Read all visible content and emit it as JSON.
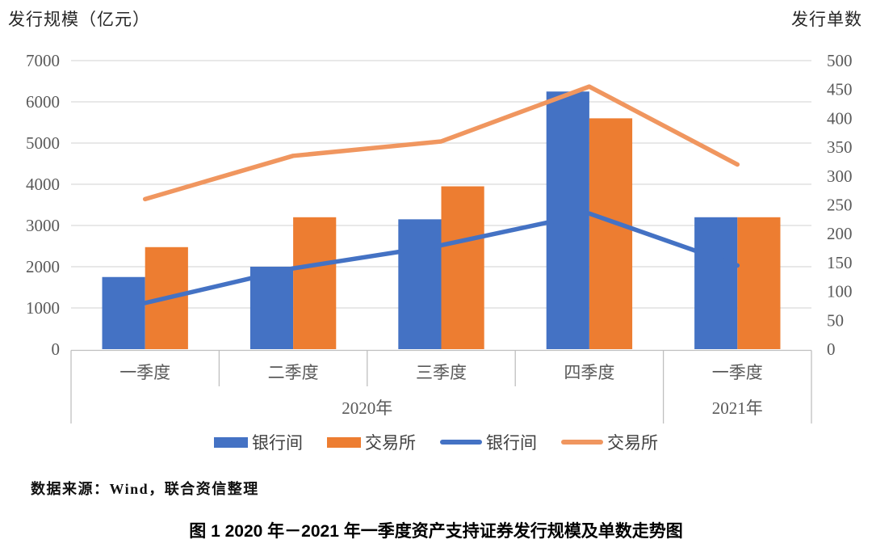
{
  "chart_data": {
    "type": "bar",
    "subtype": "combo-bar-line-dual-axis",
    "title": "",
    "categories": [
      "一季度",
      "二季度",
      "三季度",
      "四季度",
      "一季度"
    ],
    "category_groups": [
      {
        "label": "2020年",
        "span": 4
      },
      {
        "label": "2021年",
        "span": 1
      }
    ],
    "left_axis": {
      "title": "发行规模（亿元）",
      "min": 0,
      "max": 7000,
      "step": 1000
    },
    "right_axis": {
      "title": "发行单数",
      "min": 0,
      "max": 500,
      "step": 50
    },
    "bar_series": [
      {
        "name": "银行间",
        "key": "interbank",
        "axis": "left",
        "color": "#4472C4",
        "values": [
          1750,
          2000,
          3150,
          6250,
          3200
        ]
      },
      {
        "name": "交易所",
        "key": "exchange",
        "axis": "left",
        "color": "#ED7D31",
        "values": [
          2475,
          3200,
          3950,
          5600,
          3200
        ]
      }
    ],
    "line_series": [
      {
        "name": "银行间",
        "key": "interbank",
        "axis": "right",
        "color": "#4472C4",
        "values": [
          80,
          140,
          180,
          235,
          145
        ]
      },
      {
        "name": "交易所",
        "key": "exchange",
        "axis": "right",
        "color": "#F0965F",
        "values": [
          260,
          335,
          360,
          455,
          320
        ]
      }
    ],
    "legend": [
      {
        "type": "bar",
        "label": "银行间",
        "color": "#4472C4"
      },
      {
        "type": "bar",
        "label": "交易所",
        "color": "#ED7D31"
      },
      {
        "type": "line",
        "label": "银行间",
        "color": "#4472C4"
      },
      {
        "type": "line",
        "label": "交易所",
        "color": "#F0965F"
      }
    ],
    "grid": true,
    "legend_position": "bottom",
    "colors": {
      "grid": "#D9D9D9",
      "axis_line": "#BFBFBF",
      "tick_text": "#595959"
    }
  },
  "source": {
    "text": "数据来源：Wind，联合资信整理"
  },
  "caption": "图 1 2020 年－2021 年一季度资产支持证券发行规模及单数走势图"
}
